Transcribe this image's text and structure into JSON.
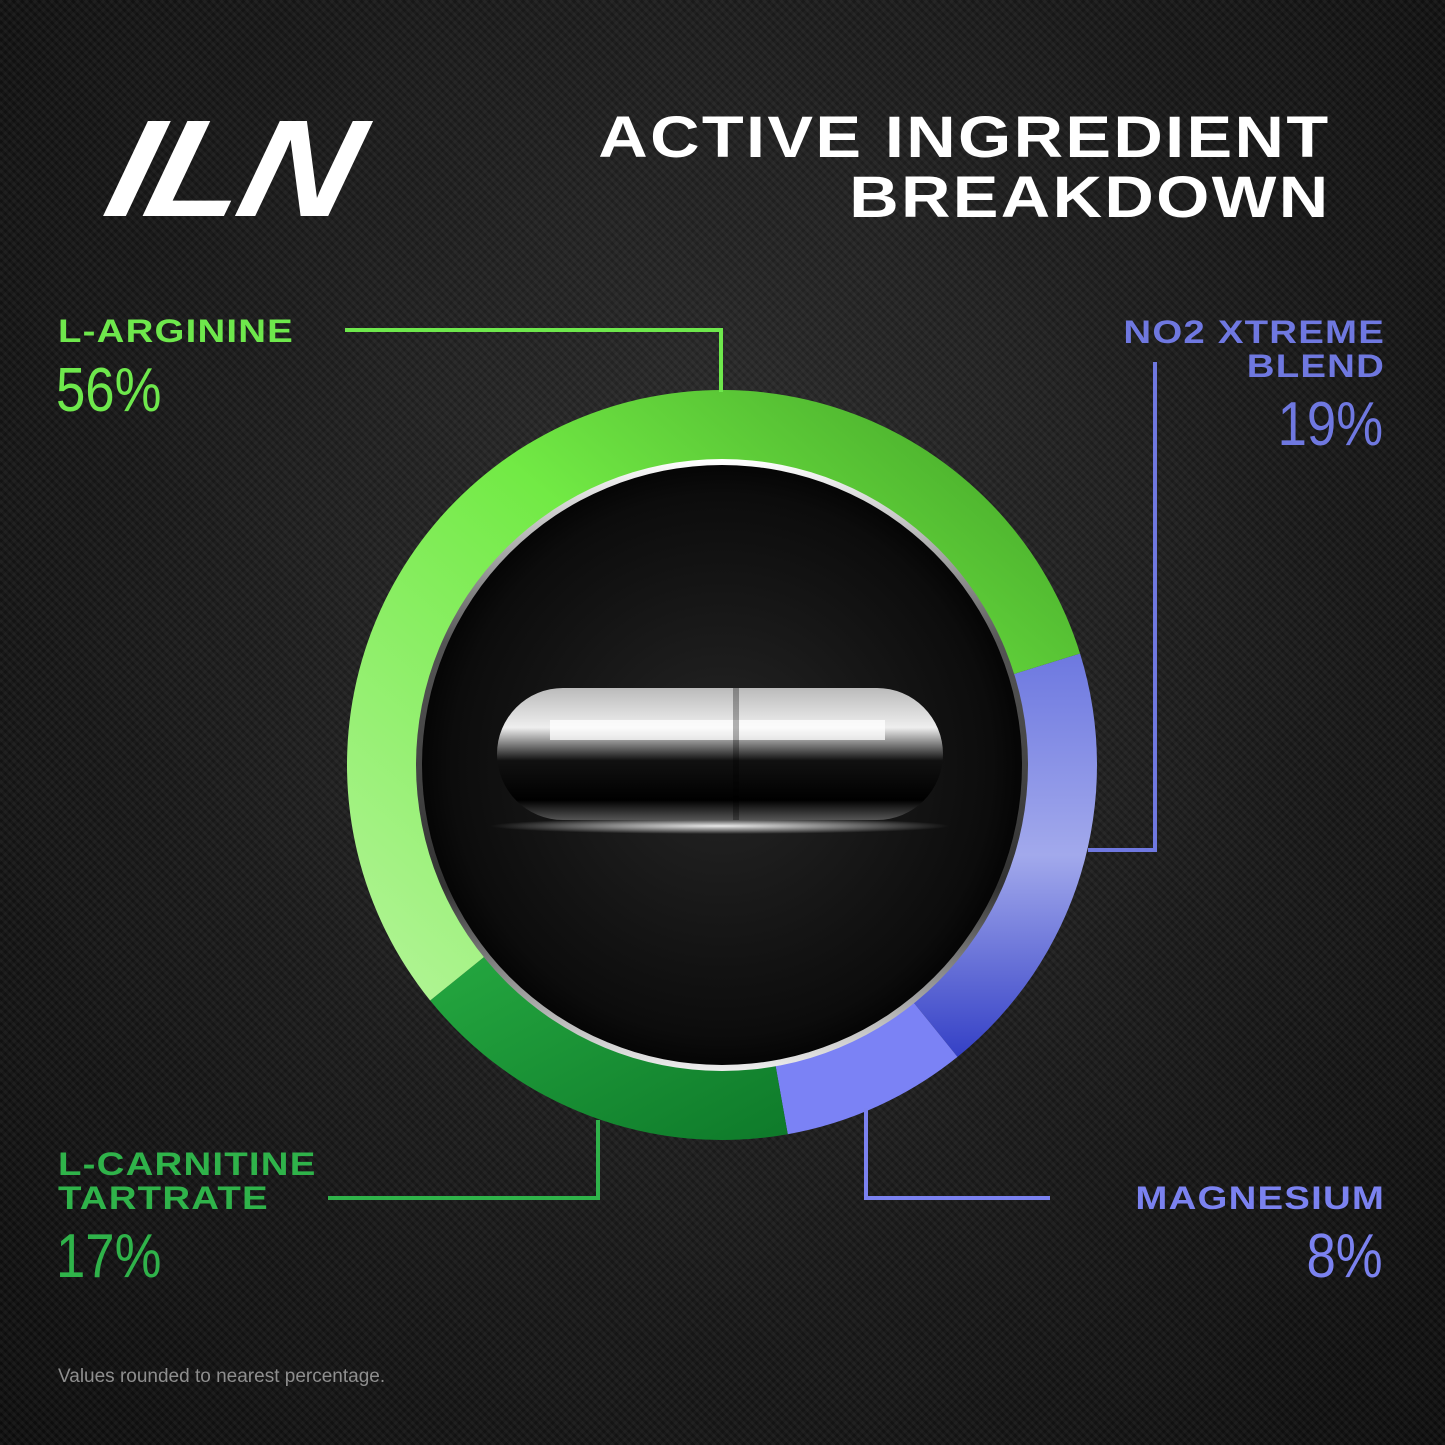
{
  "logo": "ILN",
  "title_line1": "ACTIVE INGREDIENT",
  "title_line2": "BREAKDOWN",
  "footnote": "Values rounded to nearest percentage.",
  "chart_data": {
    "type": "pie",
    "variant": "donut",
    "title": "ACTIVE INGREDIENT BREAKDOWN",
    "slices": [
      {
        "label": "NO2 XTREME BLEND",
        "value": 19,
        "display": "19%",
        "color": "#7f8ae6"
      },
      {
        "label": "MAGNESIUM",
        "value": 8,
        "display": "8%",
        "color": "#7b82f5"
      },
      {
        "label": "L-CARNITINE TARTRATE",
        "value": 17,
        "display": "17%",
        "color": "#1d9a3a"
      },
      {
        "label": "L-ARGININE",
        "value": 56,
        "display": "56%",
        "color": "#6ee84c"
      }
    ],
    "label_colors": {
      "L-ARGININE": "#6ee84c",
      "NO2 XTREME BLEND": "#6f78e0",
      "MAGNESIUM": "#7b82f0",
      "L-CARNITINE TARTRATE": "#2fb34a"
    }
  },
  "labels": {
    "arginine": {
      "name": "L-ARGININE",
      "pct": "56%"
    },
    "no2": {
      "name1": "NO2 XTREME",
      "name2": "BLEND",
      "pct": "19%"
    },
    "magnesium": {
      "name": "MAGNESIUM",
      "pct": "8%"
    },
    "carnitine": {
      "name1": "L-CARNITINE",
      "name2": "TARTRATE",
      "pct": "17%"
    }
  }
}
